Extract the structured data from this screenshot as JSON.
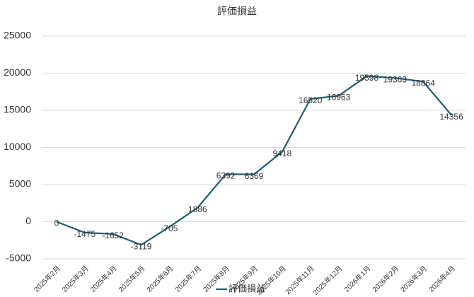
{
  "chart_data": {
    "type": "line",
    "title": "評価損益",
    "categories": [
      "2025年2月",
      "2025年3月",
      "2025年4月",
      "2025年5月",
      "2025年6月",
      "2025年7月",
      "2025年8月",
      "2025年9月",
      "2025年10月",
      "2025年11月",
      "2025年12月",
      "2026年1月",
      "2026年2月",
      "2026年3月",
      "2026年4月"
    ],
    "series": [
      {
        "name": "評価損益",
        "color": "#215a72",
        "values": [
          0,
          -1475,
          -1652,
          -3119,
          -705,
          1886,
          6392,
          6369,
          9418,
          16520,
          16963,
          19598,
          19363,
          18864,
          14356
        ]
      }
    ],
    "ylim": [
      -5000,
      25000
    ],
    "yticks": [
      -5000,
      0,
      5000,
      10000,
      15000,
      20000,
      25000
    ],
    "grid": true,
    "legend": "bottom"
  }
}
